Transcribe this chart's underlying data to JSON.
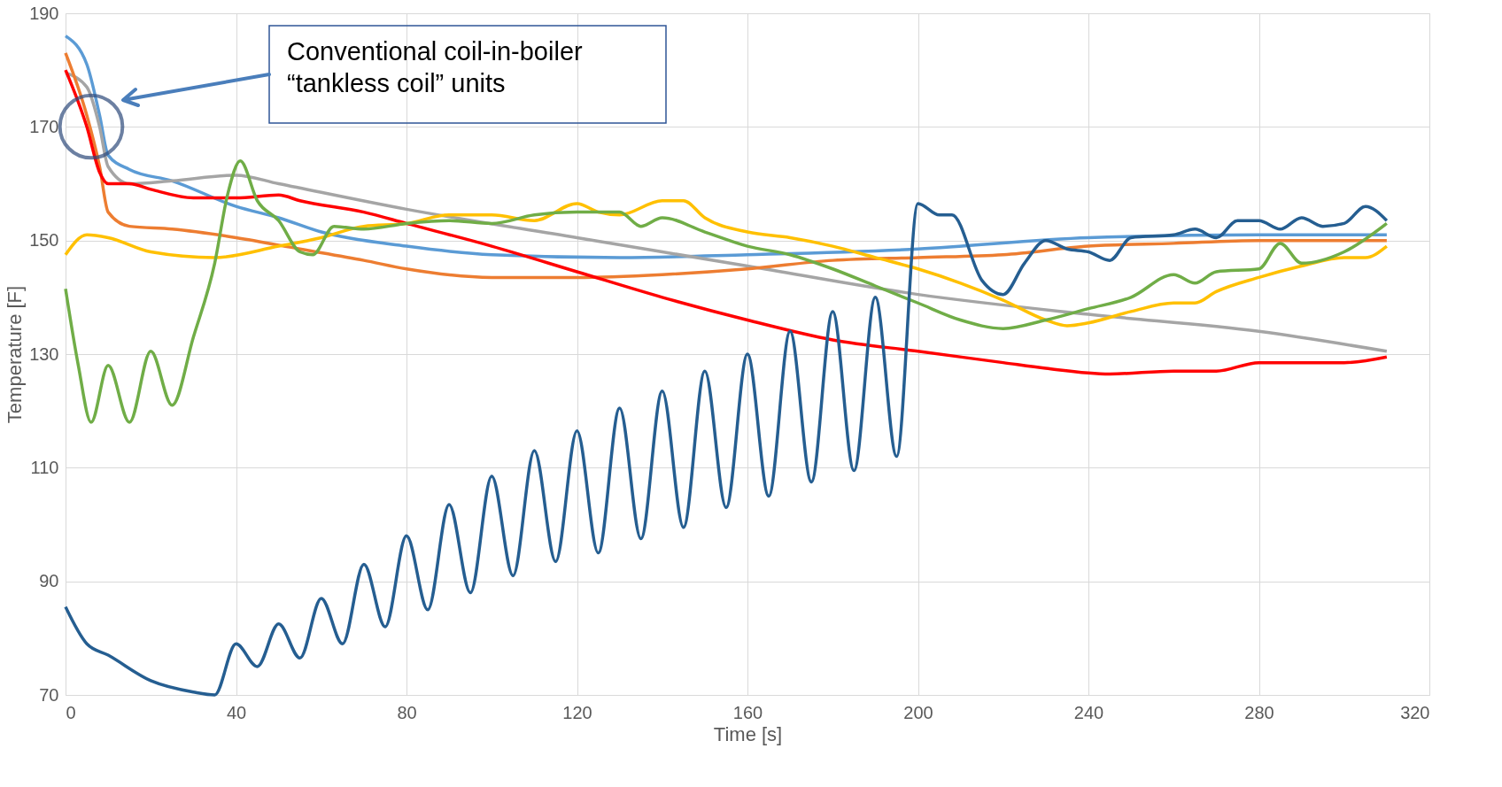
{
  "chart_data": {
    "type": "line",
    "xlabel": "Time [s]",
    "ylabel": "Temperature [F]",
    "xlim": [
      0,
      320
    ],
    "ylim": [
      70,
      190
    ],
    "xticks": [
      0,
      40,
      80,
      120,
      160,
      200,
      240,
      280,
      320
    ],
    "yticks": [
      70,
      90,
      110,
      130,
      150,
      170,
      190
    ],
    "grid": true,
    "legend": false,
    "annotations": [
      "Conventional coil-in-boiler\n“tankless coil” units"
    ],
    "series": [
      {
        "color": "#5b9bd5",
        "x": [
          0,
          5,
          8,
          10,
          15,
          25,
          40,
          50,
          60,
          80,
          100,
          130,
          160,
          200,
          240,
          280,
          310
        ],
        "values": [
          186,
          181,
          172,
          165,
          162.5,
          160.5,
          156,
          154,
          151.5,
          149,
          147.5,
          147,
          147.5,
          148.5,
          150.5,
          151,
          151
        ]
      },
      {
        "color": "#a5a5a5",
        "x": [
          0,
          5,
          8,
          10,
          15,
          25,
          40,
          50,
          80,
          120,
          160,
          200,
          240,
          280,
          310
        ],
        "values": [
          179.5,
          177,
          170,
          163,
          160,
          160.5,
          161.5,
          160,
          155.5,
          150.5,
          145.5,
          140.5,
          137,
          134,
          130.5
        ]
      },
      {
        "color": "#ed7d31",
        "x": [
          0,
          5,
          8,
          10,
          15,
          25,
          40,
          55,
          70,
          80,
          100,
          120,
          140,
          160,
          180,
          200,
          220,
          240,
          260,
          280,
          310
        ],
        "values": [
          183,
          172,
          163,
          155,
          152.5,
          152,
          150.5,
          148.5,
          146.5,
          145,
          143.5,
          143.5,
          144,
          145,
          146.5,
          147,
          147.5,
          149,
          149.5,
          150,
          150
        ]
      },
      {
        "color": "#ff0000",
        "x": [
          0,
          5,
          8,
          10,
          15,
          20,
          30,
          40,
          50,
          55,
          70,
          80,
          100,
          120,
          140,
          160,
          180,
          200,
          220,
          230,
          245,
          260,
          270,
          280,
          300,
          310
        ],
        "values": [
          180,
          170,
          162,
          160,
          160,
          159,
          157.5,
          157.5,
          158,
          157,
          155,
          153,
          149,
          144.5,
          140,
          136,
          132.5,
          130.5,
          128.5,
          127.5,
          126.5,
          127,
          127,
          128.5,
          128.5,
          129.5
        ]
      },
      {
        "color": "#ffc000",
        "x": [
          0,
          5,
          10,
          20,
          35,
          50,
          60,
          70,
          80,
          90,
          100,
          110,
          120,
          125,
          130,
          140,
          145,
          150,
          160,
          170,
          180,
          190,
          200,
          210,
          220,
          230,
          235,
          240,
          250,
          260,
          265,
          270,
          280,
          290,
          300,
          305,
          310
        ],
        "values": [
          147.5,
          151,
          150.5,
          148,
          147,
          149,
          150.5,
          152.5,
          153,
          154.5,
          154.5,
          153.5,
          156.5,
          155,
          154.5,
          157,
          157,
          154,
          151.5,
          150.5,
          149,
          147,
          145,
          142.5,
          139.5,
          136,
          135,
          135.5,
          137.5,
          139,
          139,
          141,
          143.5,
          145.5,
          147,
          147,
          149
        ]
      },
      {
        "color": "#70ad47",
        "x": [
          0,
          3,
          6,
          10,
          15,
          20,
          25,
          30,
          35,
          38,
          41,
          45,
          50,
          55,
          58,
          63,
          70,
          80,
          90,
          100,
          110,
          120,
          130,
          135,
          140,
          150,
          160,
          170,
          180,
          190,
          200,
          210,
          220,
          230,
          240,
          250,
          260,
          265,
          270,
          280,
          285,
          290,
          300,
          310
        ],
        "values": [
          141.5,
          128,
          118,
          128,
          118,
          130.5,
          121,
          133,
          146,
          158,
          164,
          157,
          153.5,
          148,
          147.5,
          152.5,
          152,
          153,
          153.5,
          153,
          154.5,
          155,
          155,
          152.5,
          154,
          151.5,
          149,
          147.5,
          145,
          142,
          139,
          136,
          134.5,
          136,
          138,
          140,
          144,
          142.5,
          144.5,
          145,
          149.5,
          146,
          148,
          153
        ]
      },
      {
        "color": "#255e91",
        "x": [
          0,
          5,
          10,
          20,
          30,
          35,
          40,
          45,
          50,
          55,
          60,
          65,
          70,
          75,
          80,
          85,
          90,
          95,
          100,
          105,
          110,
          115,
          120,
          125,
          130,
          135,
          140,
          145,
          150,
          155,
          160,
          165,
          170,
          175,
          180,
          185,
          190,
          195,
          200,
          205,
          208,
          215,
          220,
          225,
          230,
          235,
          240,
          245,
          250,
          260,
          265,
          270,
          275,
          280,
          285,
          290,
          295,
          300,
          305,
          310
        ],
        "values": [
          85.5,
          79,
          77,
          72.5,
          70.5,
          70,
          79,
          75,
          82.5,
          76.5,
          87,
          79,
          93,
          82,
          98,
          85,
          103.5,
          88,
          108.5,
          91,
          113,
          93.5,
          116.5,
          95,
          120.5,
          97.5,
          123.5,
          99.5,
          127,
          103,
          130,
          105,
          134,
          107.5,
          137.5,
          109.5,
          140,
          112,
          156.5,
          154.5,
          154.5,
          143,
          140.5,
          146,
          150,
          148.5,
          148,
          146.5,
          150.5,
          151,
          152,
          150.5,
          153.5,
          153.5,
          152,
          154,
          152.5,
          153,
          156,
          153.5
        ]
      }
    ]
  }
}
